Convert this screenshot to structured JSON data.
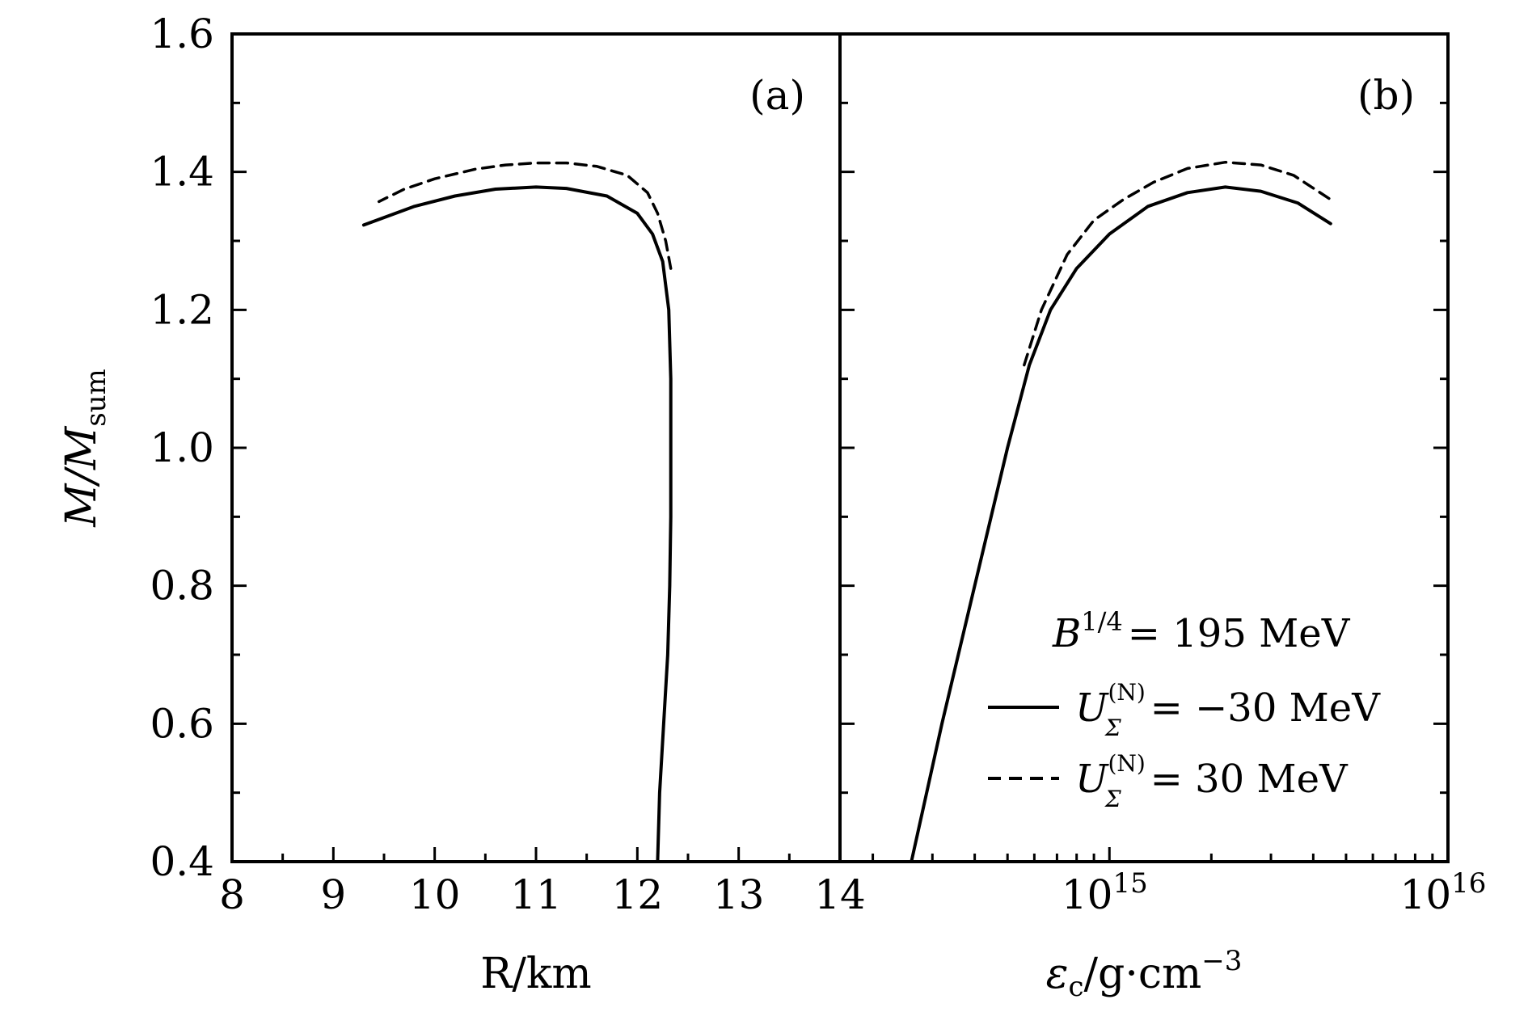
{
  "chart_data": [
    {
      "type": "line",
      "panel_label": "(a)",
      "xlabel": "R/km",
      "ylabel": "M/M_sum",
      "ylabel_main": "M/M",
      "ylabel_sub": "sum",
      "xlim": [
        8,
        14
      ],
      "ylim": [
        0.4,
        1.6
      ],
      "x_ticks": [
        "8",
        "9",
        "10",
        "11",
        "12",
        "13",
        "14"
      ],
      "y_ticks": [
        "0.4",
        "0.6",
        "0.8",
        "1.0",
        "1.2",
        "1.4",
        "1.6"
      ],
      "x_scale": "linear",
      "grid": false,
      "series": [
        {
          "name": "U_Σ^(N) = −30 MeV",
          "style": "solid",
          "points": [
            [
              12.2,
              0.4
            ],
            [
              12.22,
              0.5
            ],
            [
              12.26,
              0.6
            ],
            [
              12.3,
              0.7
            ],
            [
              12.32,
              0.8
            ],
            [
              12.33,
              0.9
            ],
            [
              12.33,
              1.0
            ],
            [
              12.33,
              1.1
            ],
            [
              12.31,
              1.2
            ],
            [
              12.25,
              1.27
            ],
            [
              12.15,
              1.31
            ],
            [
              12.0,
              1.34
            ],
            [
              11.7,
              1.365
            ],
            [
              11.3,
              1.376
            ],
            [
              11.0,
              1.378
            ],
            [
              10.6,
              1.375
            ],
            [
              10.2,
              1.365
            ],
            [
              9.8,
              1.35
            ],
            [
              9.3,
              1.323
            ]
          ]
        },
        {
          "name": "U_Σ^(N) = 30 MeV",
          "style": "dashed",
          "points": [
            [
              12.33,
              1.26
            ],
            [
              12.28,
              1.3
            ],
            [
              12.2,
              1.34
            ],
            [
              12.1,
              1.37
            ],
            [
              11.9,
              1.395
            ],
            [
              11.6,
              1.408
            ],
            [
              11.3,
              1.413
            ],
            [
              11.0,
              1.413
            ],
            [
              10.7,
              1.41
            ],
            [
              10.4,
              1.404
            ],
            [
              10.0,
              1.39
            ],
            [
              9.7,
              1.375
            ],
            [
              9.45,
              1.357
            ]
          ]
        }
      ]
    },
    {
      "type": "line",
      "panel_label": "(b)",
      "xlabel": "εc/g·cm−3",
      "xlabel_main": "ε",
      "xlabel_sub": "c",
      "xlabel_unit": "/g·cm",
      "xlabel_sup": "−3",
      "xlim": [
        160000000000000.0,
        1e+16
      ],
      "ylim": [
        0.4,
        1.6
      ],
      "x_scale": "log",
      "x_ticks": [
        {
          "base": "10",
          "exp": "15",
          "value": 1000000000000000.0
        },
        {
          "base": "10",
          "exp": "16",
          "value": 1e+16
        }
      ],
      "grid": false,
      "legend": {
        "position": "lower-right",
        "title_main": "B",
        "title_sup": "1/4",
        "title_rest": "= 195 MeV",
        "entries": [
          {
            "symbol": "U",
            "sup": "(N)",
            "sub": "Σ",
            "text": "= −30 MeV",
            "style": "solid"
          },
          {
            "symbol": "U",
            "sup": "(N)",
            "sub": "Σ",
            "text": "= 30 MeV",
            "style": "dashed"
          }
        ]
      },
      "series": [
        {
          "name": "U_Σ^(N) = −30 MeV",
          "style": "solid",
          "points": [
            [
              260000000000000.0,
              0.4
            ],
            [
              320000000000000.0,
              0.6
            ],
            [
              400000000000000.0,
              0.8
            ],
            [
              500000000000000.0,
              1.0
            ],
            [
              580000000000000.0,
              1.12
            ],
            [
              670000000000000.0,
              1.2
            ],
            [
              800000000000000.0,
              1.26
            ],
            [
              1000000000000000.0,
              1.31
            ],
            [
              1300000000000000.0,
              1.35
            ],
            [
              1700000000000000.0,
              1.37
            ],
            [
              2200000000000000.0,
              1.378
            ],
            [
              2800000000000000.0,
              1.372
            ],
            [
              3600000000000000.0,
              1.355
            ],
            [
              4500000000000000.0,
              1.325
            ]
          ]
        },
        {
          "name": "U_Σ^(N) = 30 MeV",
          "style": "dashed",
          "points": [
            [
              560000000000000.0,
              1.12
            ],
            [
              630000000000000.0,
              1.2
            ],
            [
              750000000000000.0,
              1.28
            ],
            [
              900000000000000.0,
              1.33
            ],
            [
              1100000000000000.0,
              1.36
            ],
            [
              1350000000000000.0,
              1.385
            ],
            [
              1700000000000000.0,
              1.405
            ],
            [
              2200000000000000.0,
              1.414
            ],
            [
              2800000000000000.0,
              1.41
            ],
            [
              3500000000000000.0,
              1.395
            ],
            [
              4500000000000000.0,
              1.36
            ]
          ]
        }
      ]
    }
  ]
}
